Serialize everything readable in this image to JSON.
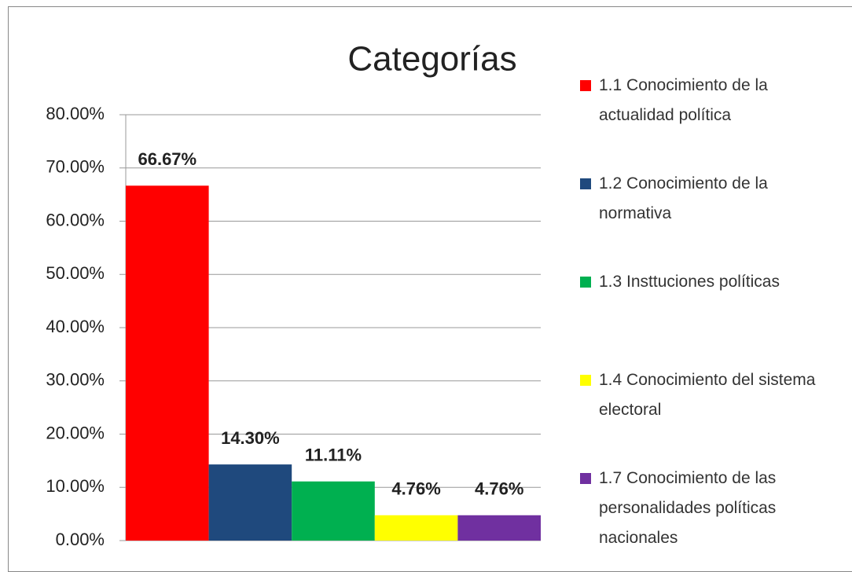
{
  "chart_data": {
    "type": "bar",
    "title": "Categorías",
    "categories": [
      "1.1 Conocimiento de la actualidad política",
      "1.2 Conocimiento de la normativa",
      "1.3 Insttuciones políticas",
      "1.4 Conocimiento del sistema electoral",
      "1.7 Conocimiento de las personalidades políticas nacionales"
    ],
    "values": [
      66.67,
      14.3,
      11.11,
      4.76,
      4.76
    ],
    "value_labels": [
      "66.67%",
      "14.30%",
      "11.11%",
      "4.76%",
      "4.76%"
    ],
    "colors": [
      "#ff0000",
      "#1f497d",
      "#00b050",
      "#ffff00",
      "#7030a0"
    ],
    "ylim": [
      0,
      80
    ],
    "yticks": [
      {
        "value": 0,
        "label": "0.00%"
      },
      {
        "value": 10,
        "label": "10.00%"
      },
      {
        "value": 20,
        "label": "20.00%"
      },
      {
        "value": 30,
        "label": "30.00%"
      },
      {
        "value": 40,
        "label": "40.00%"
      },
      {
        "value": 50,
        "label": "50.00%"
      },
      {
        "value": 60,
        "label": "60.00%"
      },
      {
        "value": 70,
        "label": "70.00%"
      },
      {
        "value": 80,
        "label": "80.00%"
      }
    ],
    "grid": true,
    "legend": "right"
  }
}
